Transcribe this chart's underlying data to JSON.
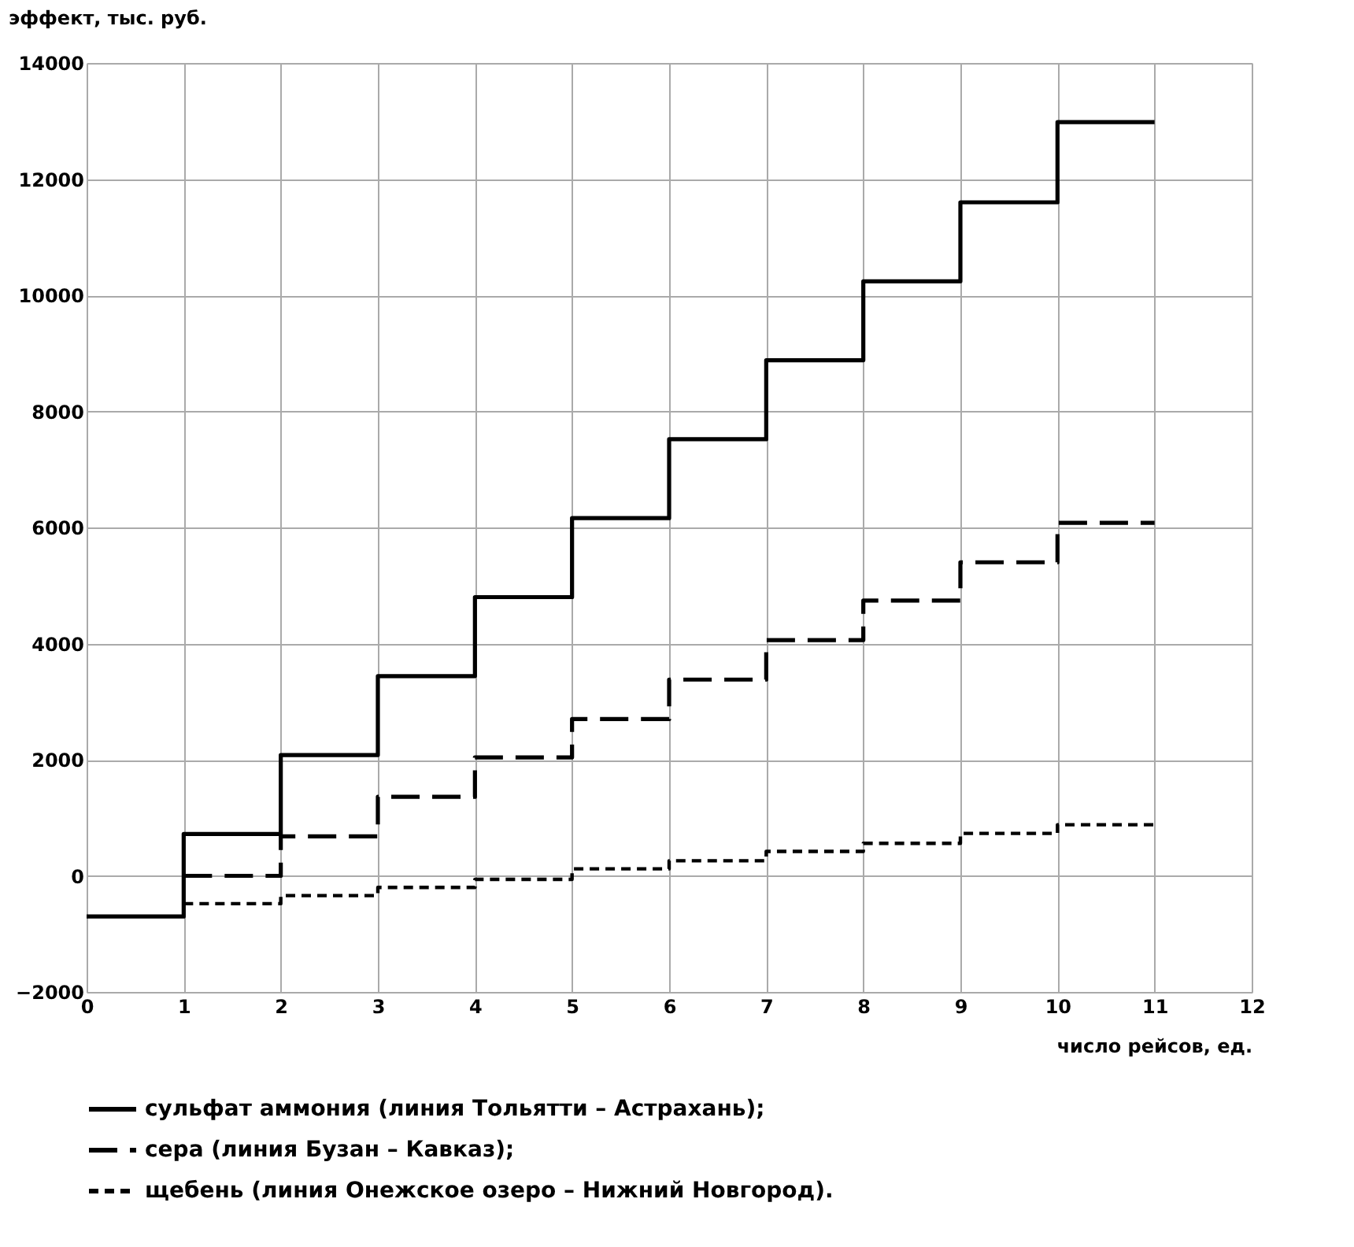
{
  "chart_data": {
    "type": "step",
    "ylabel": "эффект, тыс. руб.",
    "xlabel": "число рейсов, ед.",
    "xlim": [
      0,
      12
    ],
    "xticks": [
      0,
      1,
      2,
      3,
      4,
      5,
      6,
      7,
      8,
      9,
      10,
      11,
      12
    ],
    "ylim": [
      -2000,
      14000
    ],
    "yticks": [
      -2000,
      0,
      2000,
      4000,
      6000,
      8000,
      10000,
      12000,
      14000
    ],
    "grid": true,
    "legend": "bottom",
    "marker": "none",
    "series": [
      {
        "name": "сульфат аммония (линия Тольятти – Астрахань);",
        "color": "#000000",
        "line_style": "solid",
        "x": [
          0,
          1,
          2,
          3,
          4,
          5,
          6,
          7,
          8,
          9,
          10,
          11
        ],
        "values": [
          -700,
          720,
          2080,
          3440,
          4800,
          6160,
          7520,
          8880,
          10240,
          11600,
          12980,
          12980
        ]
      },
      {
        "name": "сера (линия Бузан – Кавказ);",
        "color": "#000000",
        "line_style": "dashed",
        "x": [
          1,
          2,
          3,
          4,
          5,
          6,
          7,
          8,
          9,
          10,
          11
        ],
        "values": [
          0,
          680,
          1360,
          2040,
          2700,
          3380,
          4060,
          4740,
          5400,
          6080,
          6080
        ]
      },
      {
        "name": "щебень (линия Онежское озеро – Нижний Новгород).",
        "color": "#000000",
        "line_style": "dotted",
        "x": [
          1,
          2,
          3,
          4,
          5,
          6,
          7,
          8,
          9,
          10,
          11
        ],
        "values": [
          -480,
          -340,
          -200,
          -60,
          120,
          260,
          420,
          560,
          730,
          880,
          880
        ]
      }
    ]
  }
}
